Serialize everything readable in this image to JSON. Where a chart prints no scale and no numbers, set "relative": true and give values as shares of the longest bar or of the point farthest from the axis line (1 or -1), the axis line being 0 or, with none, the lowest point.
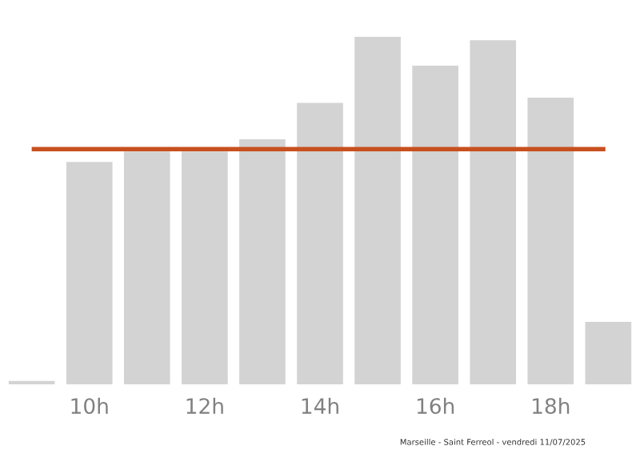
{
  "chart_data": {
    "type": "bar",
    "relative": true,
    "categories": [
      null,
      "10h",
      null,
      "12h",
      null,
      "14h",
      null,
      "16h",
      null,
      "18h",
      null
    ],
    "values": [
      0.01,
      0.64,
      0.67,
      0.67,
      0.705,
      0.81,
      1,
      0.917,
      0.99,
      0.825,
      0.18
    ],
    "color": "#d3d3d3",
    "ref_lines": [
      {
        "axis": "y",
        "value": 0.677,
        "color": "#c8501e"
      }
    ],
    "grid": false,
    "legend": false,
    "annotations": [
      "Marseille - Saint Ferreol - vendredi 11/07/2025"
    ]
  }
}
